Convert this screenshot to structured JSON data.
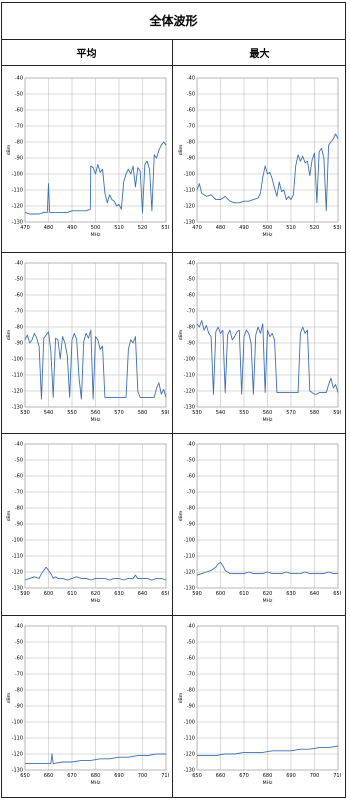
{
  "header": {
    "title": "全体波形"
  },
  "columns": [
    {
      "label": "平均"
    },
    {
      "label": "最大"
    }
  ],
  "chart_data": [
    {
      "id": "avg-470-530",
      "type": "line",
      "xlabel": "MHz",
      "ylabel": "dBm",
      "xlim": [
        470,
        530
      ],
      "ylim": [
        -130,
        -40
      ],
      "xticks": [
        470,
        480,
        490,
        500,
        510,
        520,
        530
      ],
      "yticks": [
        -40,
        -50,
        -60,
        -70,
        -80,
        -90,
        -100,
        -110,
        -120,
        -130
      ],
      "grid": true,
      "legend": "none",
      "color": "#3d6fb0",
      "series": [
        {
          "x": [
            470,
            472,
            474,
            476,
            478,
            479.5,
            480,
            480.5,
            482,
            485,
            488,
            490,
            493,
            496,
            497.8,
            498,
            499,
            500,
            501,
            502,
            503,
            504,
            505,
            506,
            507,
            508,
            509,
            510,
            511,
            512,
            513,
            514,
            515,
            516,
            517,
            518,
            519,
            520,
            521,
            522,
            523,
            524,
            525,
            526,
            527,
            528,
            529,
            530
          ],
          "y": [
            -124,
            -125,
            -125,
            -125,
            -124,
            -124,
            -106,
            -124,
            -124,
            -124,
            -124,
            -123,
            -123,
            -123,
            -122,
            -95,
            -96,
            -100,
            -94,
            -99,
            -97,
            -112,
            -118,
            -113,
            -116,
            -117,
            -120,
            -119,
            -122,
            -105,
            -100,
            -97,
            -100,
            -95,
            -108,
            -96,
            -98,
            -124,
            -94,
            -92,
            -97,
            -123,
            -88,
            -90,
            -85,
            -82,
            -80,
            -82
          ]
        }
      ]
    },
    {
      "id": "max-470-530",
      "type": "line",
      "xlabel": "MHz",
      "ylabel": "dBm",
      "xlim": [
        470,
        530
      ],
      "ylim": [
        -130,
        -40
      ],
      "xticks": [
        470,
        480,
        490,
        500,
        510,
        520,
        530
      ],
      "yticks": [
        -40,
        -50,
        -60,
        -70,
        -80,
        -90,
        -100,
        -110,
        -120,
        -130
      ],
      "grid": true,
      "legend": "none",
      "color": "#3d6fb0",
      "series": [
        {
          "x": [
            470,
            471,
            472,
            474,
            476,
            478,
            480,
            482,
            484,
            486,
            488,
            490,
            492,
            494,
            496,
            497,
            498,
            499,
            500,
            501,
            502,
            503,
            504,
            505,
            506,
            507,
            508,
            509,
            510,
            511,
            512,
            513,
            514,
            515,
            516,
            517,
            518,
            519,
            520,
            521,
            522,
            523,
            524,
            525,
            526,
            527,
            528,
            529,
            530
          ],
          "y": [
            -110,
            -106,
            -112,
            -114,
            -113,
            -116,
            -116,
            -114,
            -117,
            -118,
            -118,
            -117,
            -117,
            -116,
            -115,
            -112,
            -102,
            -95,
            -100,
            -99,
            -103,
            -109,
            -114,
            -105,
            -111,
            -110,
            -116,
            -114,
            -116,
            -113,
            -95,
            -88,
            -92,
            -89,
            -93,
            -92,
            -101,
            -91,
            -87,
            -118,
            -86,
            -84,
            -90,
            -123,
            -82,
            -80,
            -78,
            -75,
            -78
          ]
        }
      ]
    },
    {
      "id": "avg-530-590",
      "type": "line",
      "xlabel": "MHz",
      "ylabel": "dBm",
      "xlim": [
        530,
        590
      ],
      "ylim": [
        -130,
        -40
      ],
      "xticks": [
        530,
        540,
        550,
        560,
        570,
        580,
        590
      ],
      "yticks": [
        -40,
        -50,
        -60,
        -70,
        -80,
        -90,
        -100,
        -110,
        -120,
        -130
      ],
      "grid": true,
      "legend": "none",
      "color": "#3d6fb0",
      "series": [
        {
          "x": [
            530,
            531,
            532,
            533,
            534,
            535,
            536,
            537,
            538,
            539,
            540,
            541,
            542,
            543,
            544,
            545,
            546,
            547,
            548,
            549,
            550,
            551,
            552,
            553,
            554,
            555,
            556,
            557,
            558,
            559,
            560,
            561,
            562,
            563,
            564,
            565,
            566,
            567,
            568,
            569,
            570,
            571,
            572,
            573,
            574,
            575,
            576,
            577,
            578,
            579,
            580,
            581,
            582,
            583,
            584,
            585,
            586,
            587,
            588,
            589,
            590
          ],
          "y": [
            -88,
            -85,
            -90,
            -88,
            -84,
            -87,
            -92,
            -125,
            -87,
            -85,
            -83,
            -95,
            -124,
            -87,
            -88,
            -100,
            -86,
            -90,
            -98,
            -124,
            -88,
            -84,
            -88,
            -112,
            -125,
            -89,
            -84,
            -87,
            -82,
            -125,
            -86,
            -88,
            -94,
            -92,
            -124,
            -124,
            -124,
            -124,
            -124,
            -124,
            -124,
            -124,
            -124,
            -124,
            -94,
            -88,
            -90,
            -86,
            -120,
            -124,
            -124,
            -124,
            -124,
            -124,
            -124,
            -124,
            -118,
            -115,
            -122,
            -119,
            -124
          ]
        }
      ]
    },
    {
      "id": "max-530-590",
      "type": "line",
      "xlabel": "MHz",
      "ylabel": "dBm",
      "xlim": [
        530,
        590
      ],
      "ylim": [
        -130,
        -40
      ],
      "xticks": [
        530,
        540,
        550,
        560,
        570,
        580,
        590
      ],
      "yticks": [
        -40,
        -50,
        -60,
        -70,
        -80,
        -90,
        -100,
        -110,
        -120,
        -130
      ],
      "grid": true,
      "legend": "none",
      "color": "#3d6fb0",
      "series": [
        {
          "x": [
            530,
            531,
            532,
            533,
            534,
            535,
            536,
            537,
            538,
            539,
            540,
            541,
            542,
            543,
            544,
            545,
            546,
            547,
            548,
            549,
            550,
            551,
            552,
            553,
            554,
            555,
            556,
            557,
            558,
            559,
            560,
            561,
            562,
            563,
            564,
            565,
            566,
            567,
            568,
            569,
            570,
            571,
            572,
            573,
            574,
            575,
            576,
            577,
            578,
            579,
            580,
            581,
            582,
            583,
            584,
            585,
            586,
            587,
            588,
            589,
            590
          ],
          "y": [
            -78,
            -80,
            -76,
            -82,
            -79,
            -84,
            -86,
            -122,
            -83,
            -80,
            -84,
            -82,
            -121,
            -85,
            -82,
            -88,
            -86,
            -83,
            -82,
            -122,
            -86,
            -82,
            -84,
            -90,
            -122,
            -85,
            -80,
            -84,
            -78,
            -121,
            -82,
            -86,
            -84,
            -88,
            -121,
            -121,
            -121,
            -121,
            -121,
            -121,
            -121,
            -121,
            -121,
            -121,
            -84,
            -80,
            -84,
            -82,
            -120,
            -121,
            -122,
            -122,
            -121,
            -121,
            -121,
            -121,
            -116,
            -112,
            -118,
            -116,
            -121
          ]
        }
      ]
    },
    {
      "id": "avg-590-650",
      "type": "line",
      "xlabel": "MHz",
      "ylabel": "dBm",
      "xlim": [
        590,
        650
      ],
      "ylim": [
        -130,
        -40
      ],
      "xticks": [
        590,
        600,
        610,
        620,
        630,
        640,
        650
      ],
      "yticks": [
        -40,
        -50,
        -60,
        -70,
        -80,
        -90,
        -100,
        -110,
        -120,
        -130
      ],
      "grid": true,
      "legend": "none",
      "color": "#3d6fb0",
      "series": [
        {
          "x": [
            590,
            592,
            594,
            596,
            597,
            598,
            599,
            600,
            601,
            602,
            603,
            604,
            606,
            608,
            610,
            612,
            614,
            616,
            618,
            620,
            622,
            624,
            626,
            628,
            630,
            632,
            634,
            636,
            637,
            638,
            640,
            642,
            644,
            646,
            648,
            650
          ],
          "y": [
            -125,
            -124,
            -123,
            -124,
            -121,
            -119,
            -117,
            -119,
            -121,
            -124,
            -123,
            -124,
            -124,
            -125,
            -124,
            -123,
            -124,
            -124,
            -125,
            -124,
            -124,
            -124,
            -125,
            -124,
            -124,
            -125,
            -124,
            -124,
            -122,
            -124,
            -124,
            -124,
            -125,
            -124,
            -124,
            -125
          ]
        }
      ]
    },
    {
      "id": "max-590-650",
      "type": "line",
      "xlabel": "MHz",
      "ylabel": "dBm",
      "xlim": [
        590,
        650
      ],
      "ylim": [
        -130,
        -40
      ],
      "xticks": [
        590,
        600,
        610,
        620,
        630,
        640,
        650
      ],
      "yticks": [
        -40,
        -50,
        -60,
        -70,
        -80,
        -90,
        -100,
        -110,
        -120,
        -130
      ],
      "grid": true,
      "legend": "none",
      "color": "#3d6fb0",
      "series": [
        {
          "x": [
            590,
            592,
            594,
            596,
            598,
            599,
            600,
            601,
            602,
            603,
            604,
            606,
            608,
            610,
            612,
            614,
            616,
            618,
            620,
            622,
            624,
            626,
            628,
            630,
            632,
            634,
            636,
            638,
            640,
            642,
            644,
            646,
            648,
            650
          ],
          "y": [
            -122,
            -121,
            -120,
            -119,
            -117,
            -115,
            -114,
            -116,
            -119,
            -120,
            -121,
            -121,
            -121,
            -121,
            -120,
            -121,
            -121,
            -121,
            -120,
            -121,
            -121,
            -121,
            -120,
            -121,
            -121,
            -121,
            -120,
            -121,
            -121,
            -121,
            -121,
            -120,
            -121,
            -121
          ]
        }
      ]
    },
    {
      "id": "avg-650-710",
      "type": "line",
      "xlabel": "MHz",
      "ylabel": "dBm",
      "xlim": [
        650,
        710
      ],
      "ylim": [
        -130,
        -40
      ],
      "xticks": [
        650,
        660,
        670,
        680,
        690,
        700,
        710
      ],
      "yticks": [
        -40,
        -50,
        -60,
        -70,
        -80,
        -90,
        -100,
        -110,
        -120,
        -130
      ],
      "grid": true,
      "legend": "none",
      "color": "#3d6fb0",
      "series": [
        {
          "x": [
            650,
            654,
            658,
            661,
            661.5,
            662,
            666,
            670,
            674,
            678,
            682,
            686,
            690,
            694,
            698,
            702,
            706,
            710
          ],
          "y": [
            -126,
            -126,
            -126,
            -126,
            -120,
            -126,
            -125,
            -125,
            -124,
            -124,
            -123,
            -123,
            -122,
            -122,
            -121,
            -121,
            -120,
            -120
          ]
        }
      ]
    },
    {
      "id": "max-650-710",
      "type": "line",
      "xlabel": "MHz",
      "ylabel": "dBm",
      "xlim": [
        650,
        710
      ],
      "ylim": [
        -130,
        -40
      ],
      "xticks": [
        650,
        660,
        670,
        680,
        690,
        700,
        710
      ],
      "yticks": [
        -40,
        -50,
        -60,
        -70,
        -80,
        -90,
        -100,
        -110,
        -120,
        -130
      ],
      "grid": true,
      "legend": "none",
      "color": "#3d6fb0",
      "series": [
        {
          "x": [
            650,
            654,
            658,
            662,
            666,
            670,
            674,
            678,
            682,
            686,
            690,
            694,
            698,
            702,
            706,
            710
          ],
          "y": [
            -121,
            -121,
            -121,
            -120,
            -120,
            -119,
            -119,
            -119,
            -118,
            -118,
            -118,
            -117,
            -117,
            -116,
            -116,
            -115
          ]
        }
      ]
    }
  ]
}
